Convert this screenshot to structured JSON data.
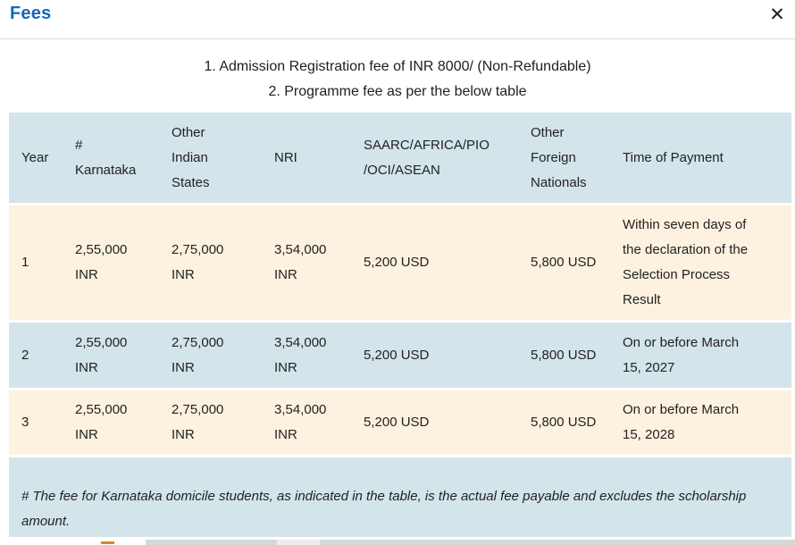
{
  "modal": {
    "title": "Fees",
    "close_icon": "✕"
  },
  "intro": {
    "line1": "1. Admission Registration fee of INR 8000/ (Non-Refundable)",
    "line2": "2. Programme fee as per the below table"
  },
  "fees_table": {
    "columns": {
      "year": "Year",
      "karnataka": "#\nKarnataka",
      "other_indian_states": "Other\nIndian\nStates",
      "nri": "NRI",
      "saarc": "SAARC/AFRICA/PIO\n/OCI/ASEAN",
      "other_foreign_nationals": "Other\nForeign\nNationals",
      "time_of_payment": "Time of Payment"
    },
    "rows": [
      {
        "year": "1",
        "karnataka": "2,55,000\nINR",
        "other_indian_states": "2,75,000\nINR",
        "nri": "3,54,000\nINR",
        "saarc": "5,200 USD",
        "other_foreign_nationals": "5,800 USD",
        "time_of_payment": "Within seven days of\nthe declaration of the\nSelection Process\nResult"
      },
      {
        "year": "2",
        "karnataka": "2,55,000\nINR",
        "other_indian_states": "2,75,000\nINR",
        "nri": "3,54,000\nINR",
        "saarc": "5,200 USD",
        "other_foreign_nationals": "5,800 USD",
        "time_of_payment": "On or before March\n15, 2027"
      },
      {
        "year": "3",
        "karnataka": "2,55,000\nINR",
        "other_indian_states": "2,75,000\nINR",
        "nri": "3,54,000\nINR",
        "saarc": "5,200 USD",
        "other_foreign_nationals": "5,800 USD",
        "time_of_payment": "On or before March\n15, 2028"
      }
    ]
  },
  "footnote": "# The fee for Karnataka domicile students, as indicated in the table, is the actual fee payable and excludes the scholarship\namount.",
  "colors": {
    "title_blue": "#1666bb",
    "table_blue": "#d3e4ea",
    "table_cream": "#fdf2df",
    "accent_orange": "#d6862c"
  }
}
